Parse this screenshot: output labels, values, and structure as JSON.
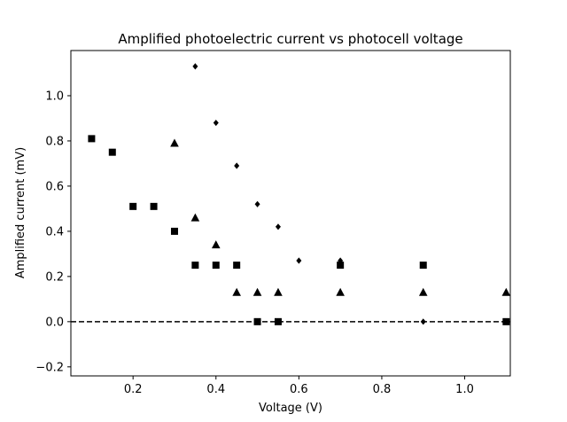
{
  "chart_data": {
    "type": "scatter",
    "title": "Amplified photoelectric current vs photocell voltage",
    "xlabel": "Voltage (V)",
    "ylabel": "Amplified current (mV)",
    "xlim": [
      0.05,
      1.11
    ],
    "ylim": [
      -0.24,
      1.2
    ],
    "xticks": [
      0.2,
      0.4,
      0.6,
      0.8,
      1.0
    ],
    "xtick_labels": [
      "0.2",
      "0.4",
      "0.6",
      "0.8",
      "1.0"
    ],
    "yticks": [
      -0.2,
      0.0,
      0.2,
      0.4,
      0.6,
      0.8,
      1.0
    ],
    "ytick_labels": [
      "−0.2",
      "0.0",
      "0.2",
      "0.4",
      "0.6",
      "0.8",
      "1.0"
    ],
    "grid": false,
    "reference_line": {
      "y": 0.0,
      "style": "dashed",
      "color": "#000000"
    },
    "series": [
      {
        "marker": "square",
        "color": "#000000",
        "x": [
          0.1,
          0.15,
          0.2,
          0.25,
          0.3,
          0.35,
          0.4,
          0.45,
          0.5,
          0.55,
          0.7,
          0.9,
          1.1
        ],
        "y": [
          0.81,
          0.75,
          0.51,
          0.51,
          0.4,
          0.25,
          0.25,
          0.25,
          0.0,
          0.0,
          0.25,
          0.25,
          0.0
        ]
      },
      {
        "marker": "triangle",
        "color": "#000000",
        "x": [
          0.3,
          0.35,
          0.4,
          0.45,
          0.5,
          0.55,
          0.7,
          0.9,
          1.1
        ],
        "y": [
          0.79,
          0.46,
          0.34,
          0.13,
          0.13,
          0.13,
          0.13,
          0.13,
          0.13
        ]
      },
      {
        "marker": "diamond",
        "color": "#000000",
        "x": [
          0.35,
          0.4,
          0.45,
          0.5,
          0.55,
          0.6,
          0.7,
          0.9
        ],
        "y": [
          1.13,
          0.88,
          0.69,
          0.52,
          0.42,
          0.27,
          0.27,
          0.0
        ]
      }
    ]
  }
}
